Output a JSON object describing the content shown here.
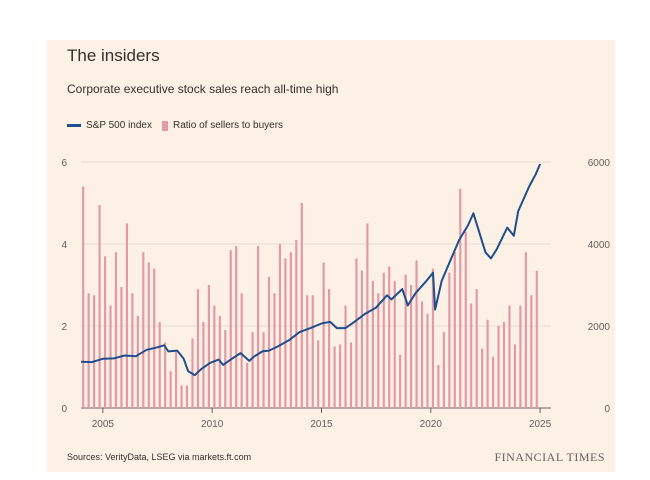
{
  "title": "The insiders",
  "subtitle": "Corporate executive stock sales reach all-time high",
  "legend": [
    {
      "name": "S&P 500 index",
      "color": "#1f4e8c"
    },
    {
      "name": "Ratio of sellers to buyers",
      "color": "#e19aa6"
    }
  ],
  "source": "Sources: VerityData, LSEG via markets.ft.com",
  "brand": "FINANCIAL TIMES",
  "chart_data": {
    "type": "bar+line",
    "title": "The insiders",
    "subtitle": "Corporate executive stock sales reach all-time high",
    "x_ticks": [
      "2005",
      "2010",
      "2015",
      "2020",
      "2025"
    ],
    "y_left_ticks": [
      "0",
      "2",
      "4",
      "6"
    ],
    "y_right_ticks": [
      "0",
      "2000",
      "4000",
      "6000"
    ],
    "xlim": [
      2004,
      2025.5
    ],
    "ylim_left": [
      0,
      6
    ],
    "ylim_right": [
      0,
      6000
    ],
    "grid": true,
    "legend_position": "top-left",
    "series": [
      {
        "name": "Ratio of sellers to buyers",
        "type": "bar",
        "axis": "left",
        "color": "#e19aa6",
        "x": [
          2004.1,
          2004.35,
          2004.6,
          2004.85,
          2005.1,
          2005.35,
          2005.6,
          2005.85,
          2006.1,
          2006.35,
          2006.6,
          2006.85,
          2007.1,
          2007.35,
          2007.6,
          2007.85,
          2008.1,
          2008.35,
          2008.6,
          2008.85,
          2009.1,
          2009.35,
          2009.6,
          2009.85,
          2010.1,
          2010.35,
          2010.6,
          2010.85,
          2011.1,
          2011.35,
          2011.6,
          2011.85,
          2012.1,
          2012.35,
          2012.6,
          2012.85,
          2013.1,
          2013.35,
          2013.6,
          2013.85,
          2014.1,
          2014.35,
          2014.6,
          2014.85,
          2015.1,
          2015.35,
          2015.6,
          2015.85,
          2016.1,
          2016.35,
          2016.6,
          2016.85,
          2017.1,
          2017.35,
          2017.6,
          2017.85,
          2018.1,
          2018.35,
          2018.6,
          2018.85,
          2019.1,
          2019.35,
          2019.6,
          2019.85,
          2020.1,
          2020.35,
          2020.6,
          2020.85,
          2021.1,
          2021.35,
          2021.6,
          2021.85,
          2022.1,
          2022.35,
          2022.6,
          2022.85,
          2023.1,
          2023.35,
          2023.6,
          2023.85,
          2024.1,
          2024.35,
          2024.6,
          2024.85
        ],
        "values": [
          5.4,
          2.8,
          2.75,
          4.95,
          3.7,
          2.5,
          3.8,
          2.95,
          4.5,
          2.8,
          2.25,
          3.8,
          3.55,
          3.4,
          2.1,
          1.6,
          0.9,
          1.4,
          0.55,
          0.55,
          1.7,
          2.9,
          2.1,
          3.0,
          2.5,
          2.25,
          1.9,
          3.85,
          3.95,
          2.8,
          1.1,
          1.85,
          3.95,
          1.85,
          3.2,
          2.8,
          4.0,
          3.65,
          3.8,
          4.1,
          5.0,
          2.75,
          2.75,
          1.65,
          3.55,
          2.9,
          1.5,
          1.55,
          2.5,
          1.6,
          3.65,
          3.35,
          4.5,
          3.1,
          2.8,
          3.3,
          3.45,
          3.1,
          1.3,
          3.25,
          3.0,
          3.6,
          2.6,
          2.3,
          3.4,
          1.05,
          1.85,
          3.3,
          3.8,
          5.35,
          4.3,
          2.55,
          2.9,
          1.45,
          2.15,
          1.25,
          2.0,
          2.1,
          2.5,
          1.55,
          2.5,
          3.8,
          2.75,
          3.35
        ]
      },
      {
        "name": "S&P 500 index",
        "type": "line",
        "axis": "right",
        "color": "#1f4e8c",
        "x": [
          2004.0,
          2004.5,
          2005.0,
          2005.5,
          2006.0,
          2006.5,
          2007.0,
          2007.5,
          2007.8,
          2008.0,
          2008.4,
          2008.7,
          2008.9,
          2009.2,
          2009.5,
          2009.9,
          2010.3,
          2010.5,
          2010.9,
          2011.3,
          2011.7,
          2011.9,
          2012.3,
          2012.6,
          2013.0,
          2013.5,
          2014.0,
          2014.5,
          2015.0,
          2015.4,
          2015.7,
          2016.1,
          2016.5,
          2017.0,
          2017.5,
          2018.0,
          2018.2,
          2018.7,
          2018.95,
          2019.3,
          2019.8,
          2020.1,
          2020.2,
          2020.5,
          2020.9,
          2021.3,
          2021.7,
          2021.95,
          2022.5,
          2022.75,
          2023.0,
          2023.5,
          2023.8,
          2024.0,
          2024.5,
          2024.8,
          2025.0
        ],
        "values": [
          1130,
          1120,
          1200,
          1210,
          1280,
          1260,
          1420,
          1480,
          1530,
          1380,
          1400,
          1200,
          900,
          800,
          950,
          1100,
          1180,
          1050,
          1200,
          1340,
          1150,
          1250,
          1380,
          1400,
          1500,
          1650,
          1850,
          1950,
          2060,
          2100,
          1950,
          1950,
          2100,
          2300,
          2450,
          2750,
          2650,
          2900,
          2500,
          2800,
          3100,
          3300,
          2400,
          3100,
          3600,
          4100,
          4450,
          4750,
          3800,
          3650,
          3850,
          4400,
          4200,
          4800,
          5400,
          5700,
          5950
        ]
      }
    ]
  }
}
